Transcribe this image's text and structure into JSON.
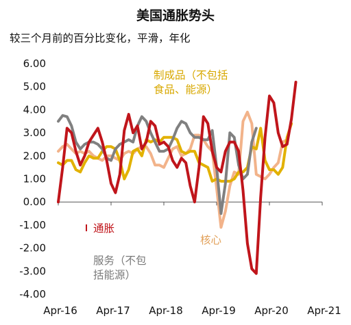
{
  "title": "美国通胀势头",
  "subtitle": "较三个月前的百分比变化，平滑，年化",
  "chart_data": {
    "type": "line",
    "ylim": [
      -4.0,
      6.0
    ],
    "xlim": [
      0,
      60
    ],
    "y_ticks": [
      "6.00",
      "5.00",
      "4.00",
      "3.00",
      "2.00",
      "1.00",
      "0.00",
      "-1.00",
      "-2.00",
      "-3.00",
      "-4.00"
    ],
    "y_tick_values": [
      6,
      5,
      4,
      3,
      2,
      1,
      0,
      -1,
      -2,
      -3,
      -4
    ],
    "x_tick_labels": [
      "Apr-16",
      "Apr-17",
      "Apr-18",
      "Apr-19",
      "Apr-20",
      "Apr-21"
    ],
    "x_tick_values": [
      0,
      12,
      24,
      36,
      48,
      60
    ],
    "grid": false,
    "series": [
      {
        "name": "通胀",
        "color": "#c0151b",
        "label_lines": [
          "通胀"
        ],
        "x": [
          0,
          1,
          2,
          3,
          4,
          5,
          6,
          7,
          8,
          9,
          10,
          11,
          12,
          13,
          14,
          15,
          16,
          17,
          18,
          19,
          20,
          21,
          22,
          23,
          24,
          25,
          26,
          27,
          28,
          29,
          30,
          31,
          32,
          33,
          34,
          35,
          36,
          37,
          38,
          39,
          40,
          41,
          42,
          43,
          44,
          45,
          46,
          47,
          48,
          49,
          50,
          51,
          52,
          53,
          54,
          55,
          56,
          57,
          58,
          59,
          60
        ],
        "y": [
          0.0,
          1.5,
          3.2,
          3.0,
          2.2,
          1.6,
          2.0,
          2.6,
          2.9,
          3.2,
          2.6,
          1.8,
          0.8,
          0.4,
          1.2,
          3.1,
          3.8,
          3.0,
          3.3,
          2.3,
          2.6,
          3.5,
          3.3,
          2.5,
          2.6,
          2.4,
          1.8,
          1.5,
          1.9,
          1.7,
          0.7,
          0.0,
          1.5,
          3.7,
          3.4,
          2.2,
          1.5,
          1.3,
          2.2,
          2.6,
          2.6,
          2.2,
          0.5,
          -1.8,
          -2.9,
          -3.1,
          0.2,
          2.8,
          4.6,
          4.3,
          3.0,
          2.4,
          2.5,
          3.6,
          5.2,
          null,
          null,
          null,
          null,
          null,
          null
        ]
      },
      {
        "name": "服务（不包括能源）",
        "color": "#808080",
        "label_lines": [
          "服务（不包",
          "括能源）"
        ],
        "x": [
          0,
          1,
          2,
          3,
          4,
          5,
          6,
          7,
          8,
          9,
          10,
          11,
          12,
          13,
          14,
          15,
          16,
          17,
          18,
          19,
          20,
          21,
          22,
          23,
          24,
          25,
          26,
          27,
          28,
          29,
          30,
          31,
          32,
          33,
          34,
          35,
          36,
          37,
          38,
          39,
          40,
          41,
          42,
          43,
          44,
          45,
          46,
          47,
          48,
          49,
          50,
          51,
          52,
          53,
          54
        ],
        "y": [
          3.5,
          3.75,
          3.7,
          3.3,
          2.6,
          2.3,
          2.5,
          2.6,
          2.6,
          2.5,
          2.3,
          1.9,
          1.8,
          2.3,
          2.5,
          2.6,
          2.7,
          2.6,
          3.3,
          3.7,
          3.5,
          3.0,
          2.6,
          2.2,
          2.2,
          2.3,
          2.7,
          3.2,
          3.5,
          3.4,
          3.0,
          2.8,
          2.8,
          2.7,
          2.7,
          3.1,
          1.5,
          -0.5,
          0.8,
          3.0,
          2.8,
          1.6,
          1.0,
          1.2,
          2.6,
          3.2,
          null,
          null,
          null,
          null,
          null,
          null,
          null,
          null,
          null
        ]
      },
      {
        "name": "制成品（不包括食品、能源）",
        "color": "#e2b100",
        "label_lines": [
          "制成品（不包括",
          "食品、能源）"
        ],
        "x": [
          0,
          1,
          2,
          3,
          4,
          5,
          6,
          7,
          8,
          9,
          10,
          11,
          12,
          13,
          14,
          15,
          16,
          17,
          18,
          19,
          20,
          21,
          22,
          23,
          24,
          25,
          26,
          27,
          28,
          29,
          30,
          31,
          32,
          33,
          34,
          35,
          36,
          37,
          38,
          39,
          40,
          41,
          42,
          43,
          44,
          45,
          46,
          47,
          48,
          49,
          50,
          51,
          52,
          53
        ],
        "y": [
          1.7,
          1.6,
          1.8,
          1.8,
          1.4,
          1.3,
          1.7,
          2.0,
          1.9,
          1.9,
          2.2,
          2.4,
          2.4,
          2.3,
          1.8,
          1.0,
          1.4,
          2.2,
          2.3,
          2.0,
          2.7,
          2.6,
          2.7,
          2.6,
          2.8,
          2.8,
          2.8,
          2.7,
          2.2,
          2.1,
          2.2,
          2.2,
          1.7,
          1.6,
          1.5,
          0.9,
          1.0,
          0.9,
          0.9,
          0.9,
          1.0,
          1.3,
          1.3,
          1.5,
          2.4,
          2.3,
          3.2,
          1.8,
          1.4,
          1.4,
          1.2,
          1.5,
          2.8,
          3.4
        ]
      },
      {
        "name": "核心",
        "color": "#f2b38a",
        "label_lines": [
          "核心"
        ],
        "x": [
          0,
          1,
          2,
          3,
          4,
          5,
          6,
          7,
          8,
          9,
          10,
          11,
          12,
          13,
          14,
          15,
          16,
          17,
          18,
          19,
          20,
          21,
          22,
          23,
          24,
          25,
          26,
          27,
          28,
          29,
          30,
          31,
          32,
          33,
          34,
          35,
          36,
          37,
          38,
          39,
          40,
          41,
          42,
          43,
          44,
          45,
          46,
          47,
          48,
          49,
          50,
          51,
          52,
          53
        ],
        "y": [
          2.2,
          2.4,
          2.5,
          2.3,
          2.1,
          2.2,
          2.1,
          2.2,
          2.0,
          1.9,
          1.8,
          2.0,
          2.0,
          1.9,
          1.8,
          2.1,
          2.2,
          2.1,
          2.3,
          2.4,
          2.4,
          2.1,
          1.6,
          1.6,
          1.5,
          1.9,
          2.3,
          2.4,
          2.0,
          2.1,
          2.3,
          2.9,
          2.9,
          2.7,
          2.4,
          2.2,
          0.6,
          -1.1,
          -0.4,
          0.7,
          1.3,
          1.2,
          3.5,
          3.9,
          3.4,
          1.2,
          1.1,
          1.0,
          1.2,
          1.5,
          1.7,
          2.6,
          2.7,
          null
        ]
      }
    ]
  }
}
